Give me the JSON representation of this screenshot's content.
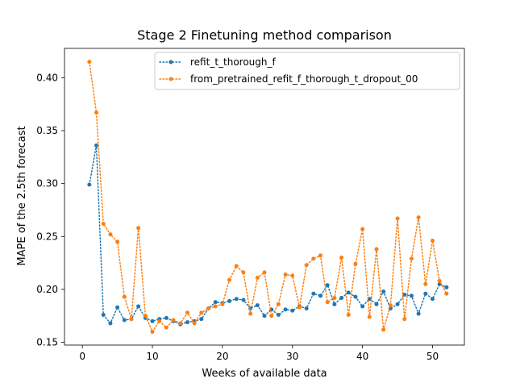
{
  "chart_data": {
    "type": "line",
    "title": "Stage 2 Finetuning method comparison",
    "xlabel": "Weeks of available data",
    "ylabel": "MAPE of the 2.5th forecast",
    "xlim": [
      -2.55,
      54.55
    ],
    "ylim": [
      0.1474,
      0.4277
    ],
    "xticks": [
      0,
      10,
      20,
      30,
      40,
      50
    ],
    "yticks": [
      0.15,
      0.2,
      0.25,
      0.3,
      0.35,
      0.4
    ],
    "ytick_labels": [
      "0.15",
      "0.20",
      "0.25",
      "0.30",
      "0.35",
      "0.40"
    ],
    "grid": false,
    "legend_position": "top-center",
    "series": [
      {
        "name": "refit_t_thorough_f",
        "color": "#1f77b4",
        "x": [
          1,
          2,
          3,
          4,
          5,
          6,
          7,
          8,
          9,
          10,
          11,
          12,
          13,
          14,
          15,
          16,
          17,
          18,
          19,
          20,
          21,
          22,
          23,
          24,
          25,
          26,
          27,
          28,
          29,
          30,
          31,
          32,
          33,
          34,
          35,
          36,
          37,
          38,
          39,
          40,
          41,
          42,
          43,
          44,
          45,
          46,
          47,
          48,
          49,
          50,
          51,
          52
        ],
        "y": [
          0.299,
          0.336,
          0.176,
          0.168,
          0.183,
          0.171,
          0.172,
          0.184,
          0.173,
          0.17,
          0.172,
          0.173,
          0.17,
          0.167,
          0.169,
          0.17,
          0.172,
          0.182,
          0.188,
          0.187,
          0.189,
          0.191,
          0.19,
          0.182,
          0.185,
          0.175,
          0.181,
          0.176,
          0.181,
          0.18,
          0.184,
          0.182,
          0.196,
          0.194,
          0.204,
          0.186,
          0.192,
          0.197,
          0.193,
          0.184,
          0.191,
          0.186,
          0.198,
          0.182,
          0.186,
          0.195,
          0.194,
          0.177,
          0.196,
          0.191,
          0.205,
          0.202
        ]
      },
      {
        "name": "from_pretrained_refit_f_thorough_t_dropout_00",
        "color": "#ff7f0e",
        "x": [
          1,
          2,
          3,
          4,
          5,
          6,
          7,
          8,
          9,
          10,
          11,
          12,
          13,
          14,
          15,
          16,
          17,
          18,
          19,
          20,
          21,
          22,
          23,
          24,
          25,
          26,
          27,
          28,
          29,
          30,
          31,
          32,
          33,
          34,
          35,
          36,
          37,
          38,
          39,
          40,
          41,
          42,
          43,
          44,
          45,
          46,
          47,
          48,
          49,
          50,
          51,
          52
        ],
        "y": [
          0.415,
          0.367,
          0.262,
          0.252,
          0.245,
          0.193,
          0.172,
          0.258,
          0.175,
          0.16,
          0.17,
          0.164,
          0.171,
          0.168,
          0.178,
          0.168,
          0.178,
          0.182,
          0.184,
          0.186,
          0.209,
          0.222,
          0.216,
          0.177,
          0.211,
          0.216,
          0.175,
          0.186,
          0.214,
          0.213,
          0.183,
          0.223,
          0.229,
          0.232,
          0.188,
          0.192,
          0.23,
          0.176,
          0.224,
          0.257,
          0.174,
          0.238,
          0.162,
          0.185,
          0.267,
          0.172,
          0.229,
          0.268,
          0.205,
          0.246,
          0.208,
          0.196
        ]
      }
    ]
  }
}
